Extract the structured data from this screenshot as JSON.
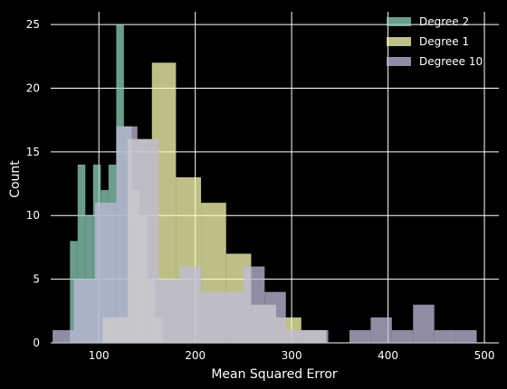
{
  "chart_data": {
    "type": "bar",
    "xlabel": "Mean Squared Error",
    "ylabel": "Count",
    "xlim": [
      50,
      515
    ],
    "ylim": [
      0,
      26
    ],
    "xticks": [
      100,
      200,
      300,
      400,
      500
    ],
    "yticks": [
      0,
      5,
      10,
      15,
      20,
      25
    ],
    "grid": true,
    "legend_position": "top-right",
    "series": [
      {
        "name": "Degree 2",
        "color": "#8fd1bb",
        "bins": [
          {
            "x0": 70,
            "x1": 78,
            "count": 8
          },
          {
            "x0": 78,
            "x1": 86,
            "count": 14
          },
          {
            "x0": 86,
            "x1": 94,
            "count": 10
          },
          {
            "x0": 94,
            "x1": 102,
            "count": 14
          },
          {
            "x0": 102,
            "x1": 110,
            "count": 12
          },
          {
            "x0": 110,
            "x1": 118,
            "count": 14
          },
          {
            "x0": 118,
            "x1": 126,
            "count": 25
          },
          {
            "x0": 126,
            "x1": 134,
            "count": 17
          },
          {
            "x0": 134,
            "x1": 142,
            "count": 12
          },
          {
            "x0": 142,
            "x1": 150,
            "count": 10
          },
          {
            "x0": 150,
            "x1": 158,
            "count": 5
          },
          {
            "x0": 158,
            "x1": 166,
            "count": 2
          }
        ]
      },
      {
        "name": "Degree 1",
        "color": "#feffb3",
        "bins": [
          {
            "x0": 104,
            "x1": 130,
            "count": 2
          },
          {
            "x0": 130,
            "x1": 155,
            "count": 16
          },
          {
            "x0": 155,
            "x1": 180,
            "count": 22
          },
          {
            "x0": 180,
            "x1": 206,
            "count": 13
          },
          {
            "x0": 206,
            "x1": 232,
            "count": 11
          },
          {
            "x0": 232,
            "x1": 258,
            "count": 7
          },
          {
            "x0": 258,
            "x1": 284,
            "count": 3
          },
          {
            "x0": 284,
            "x1": 310,
            "count": 2
          },
          {
            "x0": 310,
            "x1": 336,
            "count": 1
          }
        ]
      },
      {
        "name": "Degreee 10",
        "color": "#bfbbd9",
        "bins": [
          {
            "x0": 52,
            "x1": 74,
            "count": 1
          },
          {
            "x0": 74,
            "x1": 96,
            "count": 5
          },
          {
            "x0": 96,
            "x1": 118,
            "count": 11
          },
          {
            "x0": 118,
            "x1": 140,
            "count": 17
          },
          {
            "x0": 140,
            "x1": 162,
            "count": 16
          },
          {
            "x0": 162,
            "x1": 184,
            "count": 5
          },
          {
            "x0": 184,
            "x1": 206,
            "count": 6
          },
          {
            "x0": 206,
            "x1": 228,
            "count": 4
          },
          {
            "x0": 228,
            "x1": 250,
            "count": 4
          },
          {
            "x0": 250,
            "x1": 272,
            "count": 6
          },
          {
            "x0": 272,
            "x1": 294,
            "count": 4
          },
          {
            "x0": 294,
            "x1": 316,
            "count": 1
          },
          {
            "x0": 316,
            "x1": 338,
            "count": 1
          },
          {
            "x0": 338,
            "x1": 360,
            "count": 0
          },
          {
            "x0": 360,
            "x1": 382,
            "count": 1
          },
          {
            "x0": 382,
            "x1": 404,
            "count": 2
          },
          {
            "x0": 404,
            "x1": 426,
            "count": 1
          },
          {
            "x0": 426,
            "x1": 448,
            "count": 3
          },
          {
            "x0": 448,
            "x1": 470,
            "count": 1
          },
          {
            "x0": 470,
            "x1": 492,
            "count": 1
          }
        ]
      }
    ]
  }
}
